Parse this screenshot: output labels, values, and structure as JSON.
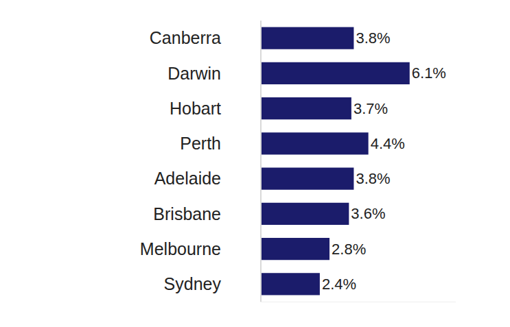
{
  "chart_data": {
    "type": "bar",
    "orientation": "horizontal",
    "categories": [
      "Canberra",
      "Darwin",
      "Hobart",
      "Perth",
      "Adelaide",
      "Brisbane",
      "Melbourne",
      "Sydney"
    ],
    "values": [
      3.8,
      6.1,
      3.7,
      4.4,
      3.8,
      3.6,
      2.8,
      2.4
    ],
    "value_labels": [
      "3.8%",
      "6.1%",
      "3.7%",
      "4.4%",
      "3.8%",
      "3.6%",
      "2.8%",
      "2.4%"
    ],
    "color": "#1b1c6b",
    "xlim": [
      0,
      8
    ],
    "data_labels": true,
    "grid": false,
    "tick_labels": "y"
  }
}
